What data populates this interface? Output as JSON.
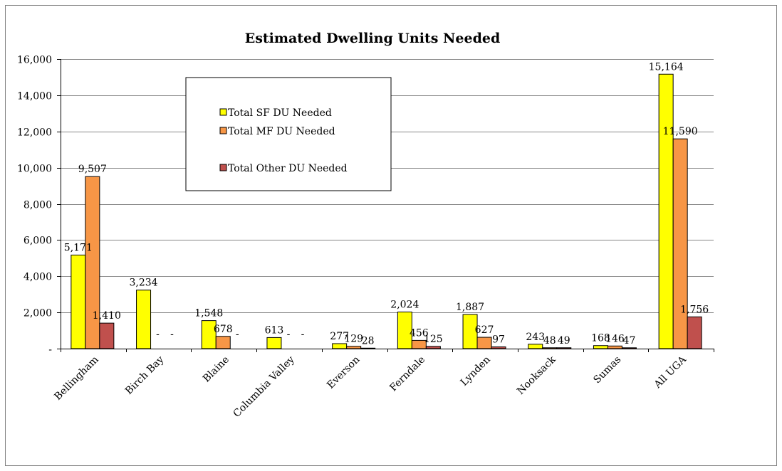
{
  "chart_data": {
    "type": "bar",
    "title": "Estimated Dwelling Units Needed",
    "categories": [
      "Bellingham",
      "Birch Bay",
      "Blaine",
      "Columbia Valley",
      "Everson",
      "Ferndale",
      "Lynden",
      "Nooksack",
      "Sumas",
      "All UGA"
    ],
    "series": [
      {
        "name": "Total SF DU Needed",
        "color": "#ffff00",
        "values": [
          5171,
          3234,
          1548,
          613,
          277,
          2024,
          1887,
          243,
          168,
          15164
        ],
        "labels": [
          "5,171",
          "3,234",
          "1,548",
          "613",
          "277",
          "2,024",
          "1,887",
          "243",
          "168",
          "15,164"
        ]
      },
      {
        "name": "Total MF DU Needed",
        "color": "#f79646",
        "values": [
          9507,
          0,
          678,
          0,
          129,
          456,
          627,
          48,
          146,
          11590
        ],
        "labels": [
          "9,507",
          "-",
          "678",
          "-",
          "129",
          "456",
          "627",
          "48",
          "146",
          "11,590"
        ]
      },
      {
        "name": "Total Other DU Needed",
        "color": "#c0504d",
        "values": [
          1410,
          0,
          0,
          0,
          28,
          125,
          97,
          49,
          47,
          1756
        ],
        "labels": [
          "1,410",
          "-",
          "-",
          "-",
          "28",
          "125",
          "97",
          "49",
          "47",
          "1,756"
        ]
      }
    ],
    "ylim": [
      0,
      16000
    ],
    "yticks": [
      0,
      2000,
      4000,
      6000,
      8000,
      10000,
      12000,
      14000,
      16000
    ],
    "ytick_labels": [
      "-",
      "2,000",
      "4,000",
      "6,000",
      "8,000",
      "10,000",
      "12,000",
      "14,000",
      "16,000"
    ],
    "grid": true,
    "legend_position": "top-left inside plot"
  }
}
